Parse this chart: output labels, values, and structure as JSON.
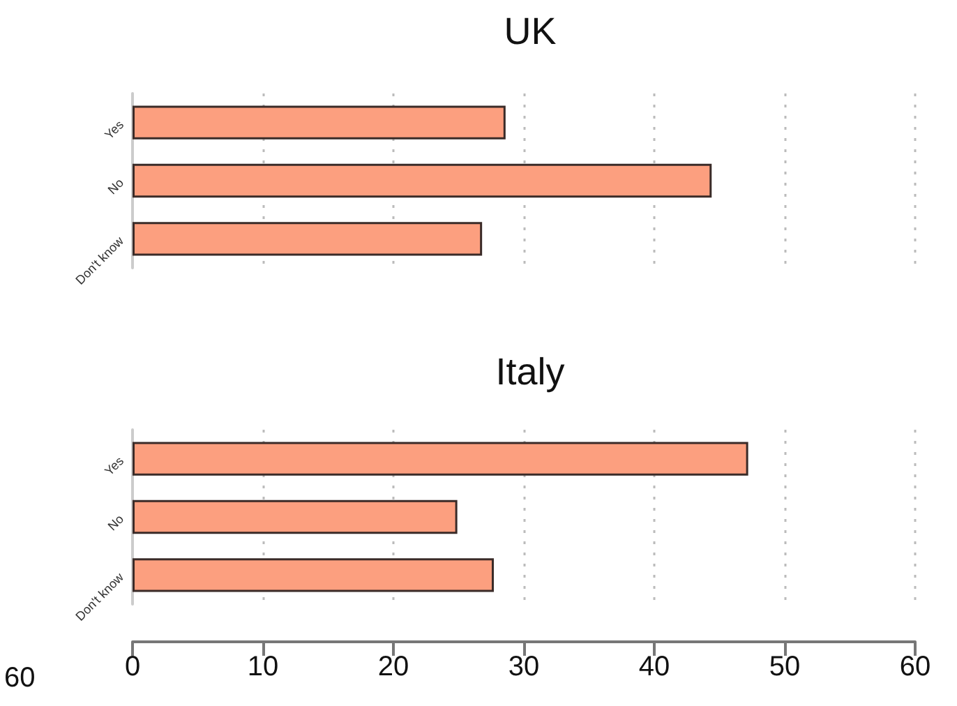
{
  "chart_data": [
    {
      "type": "bar",
      "orientation": "horizontal",
      "title": "UK",
      "categories": [
        "Yes",
        "No",
        "Don't know"
      ],
      "values": [
        28.6,
        44.4,
        26.8
      ],
      "color": "#fc9f7f",
      "xlim": [
        0,
        60
      ],
      "xticks": [
        0,
        10,
        20,
        30,
        40,
        50,
        60
      ],
      "grid": "x",
      "tick_labels": "y"
    },
    {
      "type": "bar",
      "orientation": "horizontal",
      "title": "Italy",
      "categories": [
        "Yes",
        "No",
        "Don't know"
      ],
      "values": [
        47.2,
        24.9,
        27.7
      ],
      "color": "#fc9f7f",
      "xlim": [
        0,
        60
      ],
      "xticks": [
        0,
        10,
        20,
        30,
        40,
        50,
        60
      ],
      "grid": "x",
      "annotations": [
        "60"
      ]
    }
  ]
}
